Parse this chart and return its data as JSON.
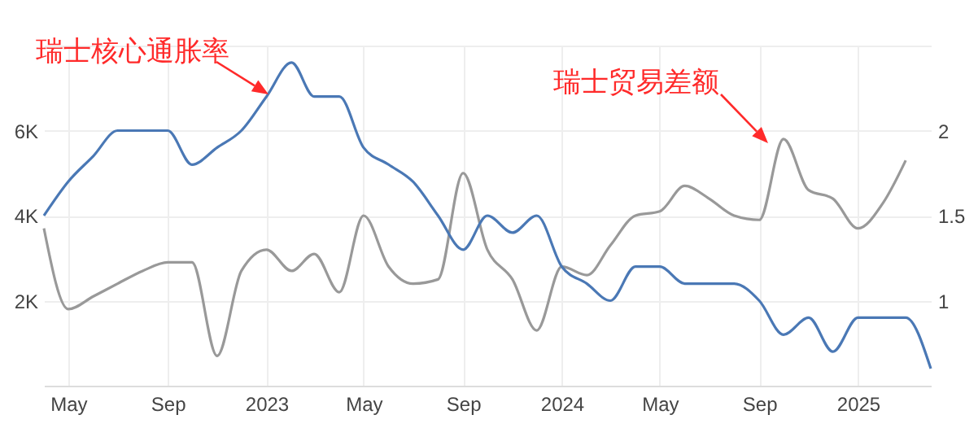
{
  "chart_data": {
    "type": "line",
    "x": [
      "2022-04",
      "2022-05",
      "2022-06",
      "2022-07",
      "2022-08",
      "2022-09",
      "2022-10",
      "2022-11",
      "2022-12",
      "2023-01",
      "2023-02",
      "2023-03",
      "2023-04",
      "2023-05",
      "2023-06",
      "2023-07",
      "2023-08",
      "2023-09",
      "2023-10",
      "2023-11",
      "2023-12",
      "2024-01",
      "2024-02",
      "2024-03",
      "2024-04",
      "2024-05",
      "2024-06",
      "2024-07",
      "2024-08",
      "2024-09",
      "2024-10",
      "2024-11",
      "2024-12",
      "2025-01",
      "2025-02",
      "2025-03",
      "2025-04"
    ],
    "series": [
      {
        "name": "瑞士核心通胀率",
        "color": "#4a78b5",
        "axis": "y2",
        "values": [
          1.5,
          1.7,
          1.85,
          2.0,
          2.0,
          2.0,
          1.8,
          1.9,
          2.0,
          2.2,
          2.4,
          2.2,
          2.2,
          1.9,
          1.8,
          1.7,
          1.5,
          1.3,
          1.5,
          1.4,
          1.5,
          1.2,
          1.1,
          1.0,
          1.2,
          1.2,
          1.1,
          1.1,
          1.1,
          1.0,
          0.8,
          0.9,
          0.7,
          0.9,
          0.9,
          0.9,
          0.6
        ]
      },
      {
        "name": "瑞士贸易差额",
        "color": "#999999",
        "values": [
          3700,
          1800,
          2100,
          2400,
          2700,
          2900,
          2900,
          700,
          2700,
          3200,
          2700,
          3100,
          2200,
          4000,
          2800,
          2400,
          2500,
          5000,
          3200,
          2500,
          1300,
          2800,
          2600,
          3300,
          4000,
          4100,
          4700,
          4400,
          4000,
          3900,
          5800,
          4600,
          4400,
          3700,
          4300,
          5300,
          null
        ]
      }
    ],
    "xlim": [
      "2022-04",
      "2025-04"
    ],
    "xticks": [
      {
        "value": "2022-05",
        "label": "May"
      },
      {
        "value": "2022-09",
        "label": "Sep"
      },
      {
        "value": "2023-01",
        "label": "2023"
      },
      {
        "value": "2023-05",
        "label": "May"
      },
      {
        "value": "2023-09",
        "label": "Sep"
      },
      {
        "value": "2024-01",
        "label": "2024"
      },
      {
        "value": "2024-05",
        "label": "May"
      },
      {
        "value": "2024-09",
        "label": "Sep"
      },
      {
        "value": "2025-01",
        "label": "2025"
      }
    ],
    "ylim": [
      0,
      8000
    ],
    "yticks": [
      {
        "value": 2000,
        "label": "2K"
      },
      {
        "value": 4000,
        "label": "4K"
      },
      {
        "value": 6000,
        "label": "6K"
      },
      {
        "value": 8000,
        "label": null
      }
    ],
    "y2lim": [
      0.5,
      2.5
    ],
    "y2ticks": [
      1,
      1.5,
      2
    ],
    "grid": true,
    "legend": false,
    "line_style": "solid"
  }
}
